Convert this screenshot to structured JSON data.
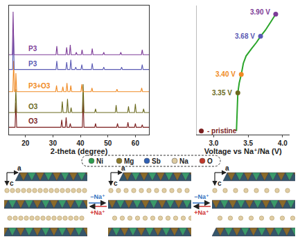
{
  "chart_data": [
    {
      "type": "line",
      "xlabel": "2-theta (degree)",
      "xlim": [
        14,
        65
      ],
      "xticks": [
        20,
        30,
        40,
        50,
        60
      ],
      "ylim": [
        0,
        105
      ],
      "tick_labels": "x",
      "grid": false,
      "series": [
        {
          "name": "O3",
          "color": "#7b1f1f",
          "x": [
            14,
            16.2,
            16.5,
            16.8,
            32.9,
            33.2,
            33.5,
            34.5,
            34.8,
            35.1,
            36.0,
            36.3,
            36.6,
            40.7,
            41,
            41.3,
            45.2,
            45.5,
            45.8,
            53.2,
            53.5,
            53.8,
            57.0,
            57.3,
            57.6,
            59.7,
            60,
            60.3,
            62.2,
            62.5,
            62.8,
            65
          ],
          "values": [
            6,
            6,
            26,
            6,
            6,
            12,
            6,
            6,
            14,
            6,
            6,
            9,
            6,
            6,
            30,
            6,
            6,
            9,
            6,
            6,
            9,
            6,
            6,
            10,
            6,
            6,
            9,
            6,
            6,
            8,
            6,
            6
          ]
        },
        {
          "name": "O3",
          "color": "#6b6a1e",
          "x": [
            14,
            16.2,
            16.5,
            16.8,
            33.1,
            33.4,
            33.7,
            35.0,
            35.3,
            35.6,
            36.3,
            36.6,
            36.9,
            40.7,
            41,
            41.3,
            45.2,
            45.5,
            45.8,
            52.7,
            53,
            53.3,
            57.2,
            57.5,
            57.8,
            59.7,
            60,
            60.3,
            62.7,
            63,
            63.3,
            65
          ],
          "values": [
            18,
            18,
            37,
            18,
            18,
            27,
            18,
            18,
            29,
            18,
            18,
            22,
            18,
            18,
            41,
            18,
            18,
            21,
            18,
            18,
            24,
            18,
            18,
            23,
            18,
            18,
            25,
            18,
            18,
            21,
            18,
            18
          ]
        },
        {
          "name": "P3+O3",
          "color": "#f08a24",
          "x": [
            14,
            15.4,
            15.7,
            16.0,
            16.3,
            16.5,
            16.8,
            31.0,
            31.3,
            31.6,
            33.3,
            33.6,
            33.9,
            34.8,
            35.1,
            35.4,
            36.2,
            36.5,
            36.8,
            40.2,
            40.5,
            40.8,
            43.9,
            44.2,
            44.5,
            53.0,
            53.3,
            53.6,
            62.0,
            62.3,
            62.6,
            65
          ],
          "values": [
            35,
            35,
            60,
            35,
            35,
            50,
            35,
            35,
            40,
            35,
            35,
            39,
            35,
            35,
            42,
            35,
            35,
            40,
            35,
            35,
            41,
            35,
            35,
            38,
            35,
            35,
            37,
            35,
            35,
            38,
            35,
            35
          ]
        },
        {
          "name": "P3",
          "color": "#5a5ab4",
          "x": [
            14,
            15.3,
            15.6,
            15.9,
            31.1,
            31.4,
            31.7,
            34.7,
            35.0,
            35.3,
            36.2,
            36.5,
            36.8,
            38.0,
            38.3,
            38.6,
            40.2,
            40.5,
            40.8,
            44.0,
            44.3,
            44.6,
            48.2,
            48.5,
            48.8,
            54.7,
            55,
            55.3,
            62.2,
            62.5,
            62.8,
            65
          ],
          "values": [
            53,
            53,
            85,
            53,
            53,
            60,
            53,
            53,
            59,
            53,
            53,
            61,
            53,
            53,
            55,
            53,
            53,
            57,
            53,
            53,
            58,
            53,
            53,
            55,
            53,
            53,
            55,
            53,
            53,
            57,
            53,
            53
          ]
        },
        {
          "name": "P3",
          "color": "#7d3c98",
          "x": [
            14,
            15.2,
            15.5,
            15.8,
            31.1,
            31.4,
            31.7,
            34.7,
            35.0,
            35.3,
            36.0,
            36.3,
            36.6,
            38.2,
            38.5,
            38.8,
            40.3,
            40.6,
            40.9,
            44.0,
            44.3,
            44.6,
            48.2,
            48.5,
            48.8,
            54.4,
            54.7,
            55.0,
            62.2,
            62.5,
            62.8,
            65
          ],
          "values": [
            65,
            65,
            100,
            65,
            65,
            72,
            65,
            65,
            71,
            65,
            65,
            73,
            65,
            65,
            67,
            65,
            65,
            69,
            65,
            65,
            70,
            65,
            65,
            67,
            65,
            65,
            67,
            65,
            65,
            69,
            65,
            65
          ]
        }
      ]
    },
    {
      "type": "line",
      "xlabel": "Voltage vs Na⁺/Na (V)",
      "xlim": [
        2.75,
        4.1
      ],
      "xticks": [
        {
          "value": 3,
          "label": "3.0"
        },
        {
          "value": 3.5,
          "label": "3.5"
        },
        {
          "value": 4,
          "label": "4.0"
        }
      ],
      "ylim": [
        0,
        105
      ],
      "tick_labels": "x",
      "grid": false,
      "series": [
        {
          "color": "#2aa52a",
          "x": [
            3.33,
            3.34,
            3.35,
            3.37,
            3.4,
            3.43,
            3.47,
            3.55,
            3.62,
            3.68,
            3.75,
            3.82,
            3.9
          ],
          "values": [
            3,
            15,
            34,
            42,
            49,
            58,
            64,
            70,
            75,
            80,
            85,
            91,
            98
          ]
        }
      ],
      "points": {
        "marker": "circle",
        "x": [
          2.82,
          3.35,
          3.4,
          3.68,
          3.9
        ],
        "values": [
          3,
          34,
          49,
          80,
          98
        ],
        "colors": [
          "#7b1f1f",
          "#6b6a1e",
          "#f08a24",
          "#5a5ab4",
          "#7d3c98"
        ]
      },
      "annotations": [
        {
          "text": "- pristine",
          "x": 2.82,
          "y": 3,
          "color": "#7b1f1f"
        },
        {
          "text": "3.35 V",
          "x": 3.35,
          "y": 34,
          "color": "#6b6a1e"
        },
        {
          "text": "3.40 V",
          "x": 3.4,
          "y": 49,
          "color": "#f08a24"
        },
        {
          "text": "3.68 V",
          "x": 3.68,
          "y": 80,
          "color": "#5a5ab4"
        },
        {
          "text": "3.90 V",
          "x": 3.9,
          "y": 98,
          "color": "#7d3c98"
        }
      ]
    }
  ],
  "diagram": {
    "legend": [
      {
        "label": "Ni",
        "color": "#2e9b4e"
      },
      {
        "label": "Mg",
        "color": "#8c7a2b"
      },
      {
        "label": "Sb",
        "color": "#2f5fb3"
      },
      {
        "label": "Na",
        "color": "#dccaa0"
      },
      {
        "label": "O",
        "color": "#c0392b"
      }
    ],
    "panels": [
      {
        "axis_down": "c",
        "axis_right": "a"
      },
      {
        "axis_down": "c",
        "axis_right": "a"
      },
      {
        "axis_down": "c",
        "axis_right": "a"
      }
    ],
    "transitions": [
      {
        "forward": "−Na⁺",
        "backward": "+Na⁺",
        "forward_color": "#2f6fc0",
        "backward_color": "#d03030"
      },
      {
        "forward": "−Na⁺",
        "backward": "+Na⁺",
        "forward_color": "#2f6fc0",
        "backward_color": "#d03030"
      }
    ]
  }
}
